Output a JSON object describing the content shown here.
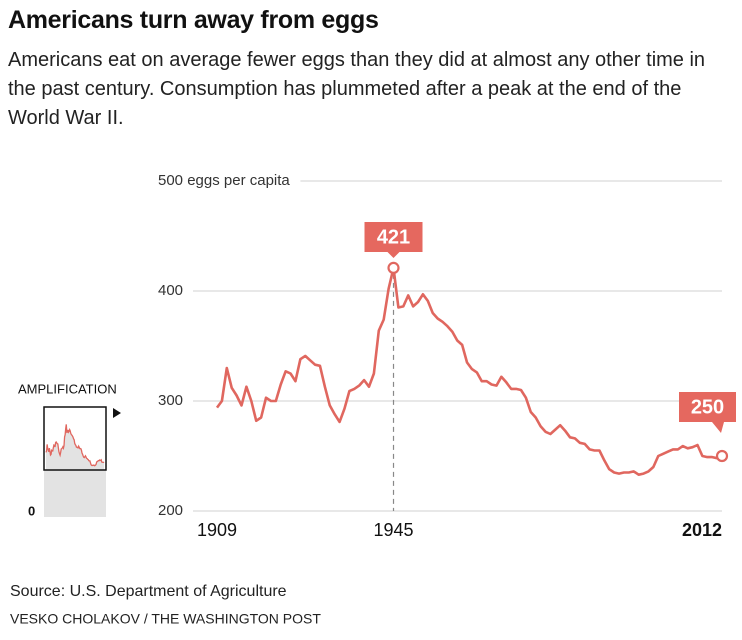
{
  "chart_data": {
    "type": "line",
    "title": "Americans turn away from eggs",
    "subtitle": "Americans eat on average fewer eggs than they did at almost any other time in the past century. Consumption has plummeted after a peak at the end of the World War II.",
    "x": [
      1909,
      1910,
      1911,
      1912,
      1913,
      1914,
      1915,
      1916,
      1917,
      1918,
      1919,
      1920,
      1921,
      1922,
      1923,
      1924,
      1925,
      1926,
      1927,
      1928,
      1929,
      1930,
      1931,
      1932,
      1933,
      1934,
      1935,
      1936,
      1937,
      1938,
      1939,
      1940,
      1941,
      1942,
      1943,
      1944,
      1945,
      1946,
      1947,
      1948,
      1949,
      1950,
      1951,
      1952,
      1953,
      1954,
      1955,
      1956,
      1957,
      1958,
      1959,
      1960,
      1961,
      1962,
      1963,
      1964,
      1965,
      1966,
      1967,
      1968,
      1969,
      1970,
      1971,
      1972,
      1973,
      1974,
      1975,
      1976,
      1977,
      1978,
      1979,
      1980,
      1981,
      1982,
      1983,
      1984,
      1985,
      1986,
      1987,
      1988,
      1989,
      1990,
      1991,
      1992,
      1993,
      1994,
      1995,
      1996,
      1997,
      1998,
      1999,
      2000,
      2001,
      2002,
      2003,
      2004,
      2005,
      2006,
      2007,
      2008,
      2009,
      2010,
      2011,
      2012
    ],
    "series": [
      {
        "color": "#e0675f",
        "values": [
          294,
          300,
          330,
          312,
          305,
          296,
          313,
          300,
          282,
          285,
          303,
          300,
          300,
          315,
          327,
          325,
          318,
          338,
          341,
          337,
          333,
          332,
          313,
          296,
          288,
          281,
          293,
          309,
          311,
          314,
          319,
          313,
          325,
          364,
          374,
          402,
          421,
          385,
          386,
          396,
          386,
          390,
          397,
          391,
          380,
          375,
          372,
          368,
          363,
          355,
          351,
          335,
          329,
          326,
          318,
          318,
          315,
          314,
          322,
          317,
          311,
          311,
          310,
          303,
          290,
          285,
          277,
          272,
          270,
          274,
          278,
          273,
          267,
          266,
          262,
          261,
          256,
          255,
          255,
          246,
          238,
          235,
          234,
          235,
          235,
          236,
          233,
          234,
          236,
          240,
          250,
          252,
          254,
          256,
          256,
          259,
          257,
          258,
          260,
          250,
          249,
          249,
          248,
          250
        ]
      }
    ],
    "xlim": [
      1909,
      2012
    ],
    "xticks": [
      1909,
      1945,
      2012
    ],
    "ylim": [
      200,
      500
    ],
    "yticks": [
      200,
      300,
      400,
      {
        "value": 500,
        "label": "500 eggs per capita"
      }
    ],
    "grid": true,
    "callout_color": "#e5685f",
    "inset_label": "AMPLIFICATION",
    "inset_zero_label": "0",
    "source": "Source: U.S. Department of Agriculture",
    "credit": "VESKO CHOLAKOV / THE WASHINGTON POST"
  }
}
